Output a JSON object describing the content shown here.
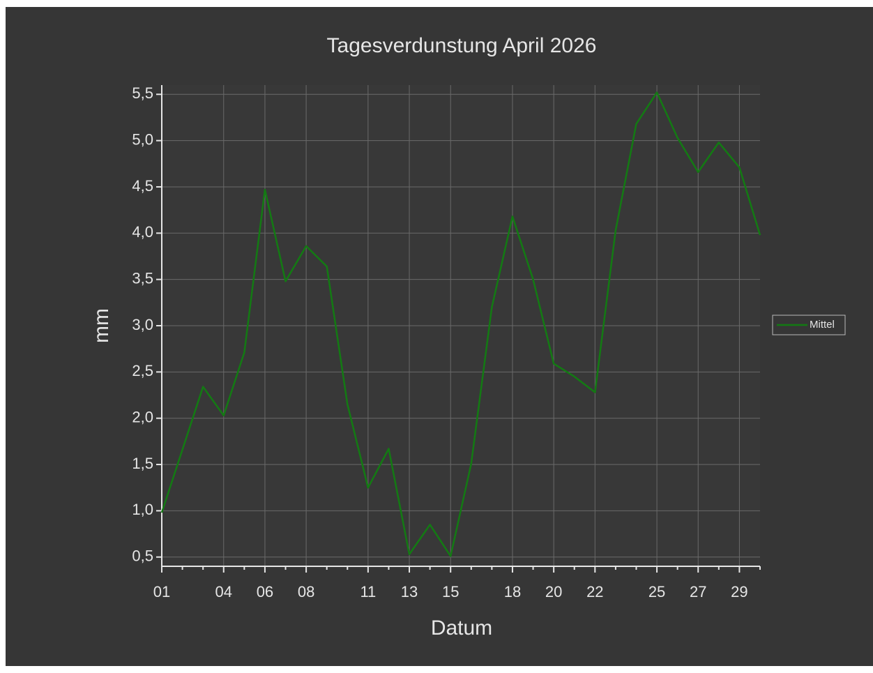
{
  "chart_data": {
    "type": "line",
    "title": "Tagesverdunstung April 2026",
    "x_label": "Datum",
    "y_label": "mm",
    "categories": [
      "01",
      null,
      null,
      "04",
      null,
      "06",
      null,
      "08",
      null,
      null,
      "11",
      null,
      "13",
      null,
      "15",
      null,
      null,
      "18",
      null,
      "20",
      null,
      "22",
      null,
      null,
      "25",
      null,
      "27",
      null,
      "29",
      null
    ],
    "series": [
      {
        "name": "Mittel",
        "color": "#137a13",
        "values": [
          0.98,
          1.66,
          2.34,
          2.03,
          2.71,
          4.47,
          3.48,
          3.86,
          3.64,
          2.15,
          1.25,
          1.67,
          0.53,
          0.85,
          0.51,
          1.51,
          3.2,
          4.18,
          3.5,
          2.59,
          2.45,
          2.28,
          4.03,
          5.18,
          5.52,
          5.03,
          4.66,
          4.98,
          4.71,
          3.98
        ]
      }
    ],
    "ylim": [
      0.4,
      5.6
    ],
    "yticks": [
      {
        "value": 0.5,
        "label": "0,5"
      },
      {
        "value": 1,
        "label": "1,0"
      },
      {
        "value": 1.5,
        "label": "1,5"
      },
      {
        "value": 2,
        "label": "2,0"
      },
      {
        "value": 2.5,
        "label": "2,5"
      },
      {
        "value": 3,
        "label": "3,0"
      },
      {
        "value": 3.5,
        "label": "3,5"
      },
      {
        "value": 4,
        "label": "4,0"
      },
      {
        "value": 4.5,
        "label": "4,5"
      },
      {
        "value": 5,
        "label": "5,0"
      },
      {
        "value": 5.5,
        "label": "5,5"
      }
    ],
    "grid": true,
    "legend": "right"
  }
}
